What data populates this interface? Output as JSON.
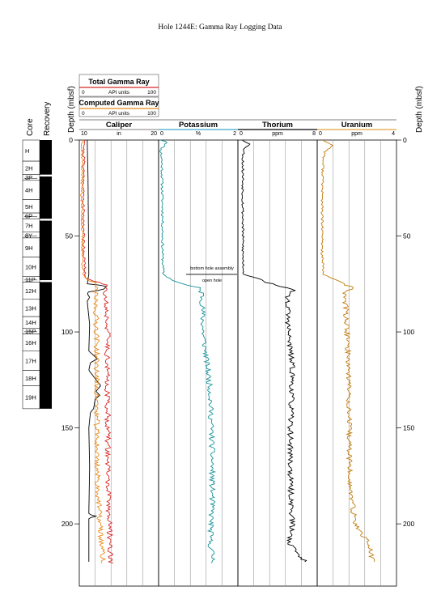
{
  "title": "Hole 1244E: Gamma Ray Logging Data",
  "header": {
    "core_label": "Core",
    "recovery_label": "Recovery",
    "depth_label": "Depth (mbsf)",
    "depth_label_right": "Depth (mbsf)"
  },
  "legend": {
    "total_gr": {
      "title": "Total Gamma Ray",
      "min": "0",
      "unit": "API units",
      "max": "100",
      "color": "#d62728"
    },
    "computed_gr": {
      "title": "Computed Gamma Ray",
      "min": "0",
      "unit": "API units",
      "max": "100",
      "color": "#e88a1a"
    }
  },
  "annotations": {
    "bha": "bottom hole assembly",
    "open_hole": "open hole",
    "bha_depth": 70
  },
  "cores": [
    {
      "label": "H",
      "top": 0,
      "bottom": 11
    },
    {
      "label": "2H",
      "top": 11,
      "bottom": 18
    },
    {
      "label": "3P",
      "top": 18,
      "bottom": 21
    },
    {
      "label": "4H",
      "top": 21,
      "bottom": 31
    },
    {
      "label": "5H",
      "top": 31,
      "bottom": 38
    },
    {
      "label": "6P",
      "top": 38,
      "bottom": 41
    },
    {
      "label": "7H",
      "top": 41,
      "bottom": 48
    },
    {
      "label": "8Y",
      "top": 48,
      "bottom": 51
    },
    {
      "label": "9H",
      "top": 51,
      "bottom": 61
    },
    {
      "label": "10H",
      "top": 61,
      "bottom": 71
    },
    {
      "label": "11P",
      "top": 71,
      "bottom": 74
    },
    {
      "label": "12H",
      "top": 74,
      "bottom": 83
    },
    {
      "label": "13H",
      "top": 83,
      "bottom": 92
    },
    {
      "label": "14H",
      "top": 92,
      "bottom": 98
    },
    {
      "label": "15P",
      "top": 98,
      "bottom": 101
    },
    {
      "label": "16H",
      "top": 101,
      "bottom": 110
    },
    {
      "label": "17H",
      "top": 110,
      "bottom": 120
    },
    {
      "label": "18H",
      "top": 120,
      "bottom": 128
    },
    {
      "label": "19H",
      "top": 128,
      "bottom": 140
    }
  ],
  "recovery": [
    [
      0,
      18
    ],
    [
      19,
      41
    ],
    [
      42,
      73
    ],
    [
      74,
      140
    ]
  ],
  "chart_data": {
    "type": "line",
    "y_axis": {
      "label": "Depth (mbsf)",
      "range": [
        0,
        224
      ],
      "ticks": [
        0,
        50,
        100,
        150,
        200
      ],
      "inverted": true
    },
    "tracks": [
      {
        "name": "Caliper",
        "unit": "in",
        "min": 10,
        "max": 20,
        "tick_min": "10",
        "tick_max": "20",
        "header_color": "#999999",
        "curves": [
          {
            "name": "caliper",
            "color": "#000000",
            "segments": [
              [
                0,
                11.0
              ],
              [
                20,
                11.1
              ],
              [
                70,
                11.2
              ],
              [
                75,
                11.0
              ],
              [
                76,
                13.5
              ],
              [
                78,
                13.0
              ],
              [
                79,
                11.2
              ],
              [
                80,
                11.0
              ],
              [
                82,
                11.3
              ],
              [
                84,
                11.0
              ],
              [
                88,
                11.1
              ],
              [
                96,
                11.3
              ],
              [
                110,
                11.2
              ],
              [
                114,
                12.3
              ],
              [
                116,
                11.4
              ],
              [
                120,
                11.2
              ],
              [
                128,
                12.7
              ],
              [
                131,
                12.1
              ],
              [
                133,
                12.6
              ],
              [
                135,
                12.0
              ],
              [
                140,
                11.8
              ],
              [
                142,
                11.4
              ],
              [
                150,
                11.2
              ],
              [
                170,
                11.3
              ],
              [
                195,
                11.2
              ],
              [
                196,
                12.1
              ],
              [
                197,
                11.2
              ],
              [
                220,
                11.2
              ]
            ]
          },
          {
            "name": "Total Gamma Ray",
            "color": "#d62728",
            "scale_min": 0,
            "scale_max": 100,
            "seed": 21,
            "segments": [
              [
                0,
                8
              ],
              [
                5,
                5
              ],
              [
                10,
                6
              ],
              [
                30,
                5
              ],
              [
                60,
                6
              ],
              [
                71,
                7
              ],
              [
                73,
                13
              ],
              [
                75,
                32
              ],
              [
                76,
                35
              ],
              [
                80,
                33
              ],
              [
                100,
                36
              ],
              [
                120,
                35
              ],
              [
                150,
                36
              ],
              [
                180,
                36
              ],
              [
                200,
                38
              ],
              [
                221,
                40
              ]
            ]
          },
          {
            "name": "Computed Gamma Ray",
            "color": "#e88a1a",
            "scale_min": 0,
            "scale_max": 100,
            "seed": 37,
            "segments": [
              [
                0,
                5
              ],
              [
                5,
                3
              ],
              [
                10,
                4
              ],
              [
                30,
                3
              ],
              [
                60,
                4
              ],
              [
                71,
                5
              ],
              [
                73,
                10
              ],
              [
                75,
                24
              ],
              [
                76,
                20
              ],
              [
                80,
                20
              ],
              [
                100,
                22
              ],
              [
                120,
                22
              ],
              [
                150,
                22
              ],
              [
                180,
                23
              ],
              [
                200,
                26
              ],
              [
                221,
                30
              ]
            ]
          }
        ]
      },
      {
        "name": "Potassium",
        "unit": "%",
        "min": 0,
        "max": 2,
        "tick_min": "0",
        "tick_max": "2",
        "header_color": "#3fa7c9",
        "curves": [
          {
            "name": "Potassium",
            "color": "#17939a",
            "seed": 11,
            "segments": [
              [
                0,
                0.05
              ],
              [
                1,
                0.25
              ],
              [
                2,
                0.18
              ],
              [
                5,
                0.05
              ],
              [
                10,
                0.08
              ],
              [
                40,
                0.1
              ],
              [
                60,
                0.1
              ],
              [
                70,
                0.12
              ],
              [
                73,
                0.35
              ],
              [
                75,
                0.6
              ],
              [
                77,
                1.0
              ],
              [
                80,
                1.1
              ],
              [
                100,
                1.12
              ],
              [
                130,
                1.3
              ],
              [
                160,
                1.35
              ],
              [
                190,
                1.35
              ],
              [
                210,
                1.3
              ],
              [
                221,
                1.4
              ]
            ]
          }
        ]
      },
      {
        "name": "Thorium",
        "unit": "ppm",
        "min": 0,
        "max": 8,
        "tick_min": "0",
        "tick_max": "8",
        "header_color": "#000000",
        "curves": [
          {
            "name": "Thorium",
            "color": "#000000",
            "seed": 53,
            "segments": [
              [
                0,
                0.5
              ],
              [
                2,
                1.2
              ],
              [
                5,
                0.6
              ],
              [
                10,
                0.5
              ],
              [
                30,
                0.5
              ],
              [
                60,
                0.5
              ],
              [
                70,
                0.6
              ],
              [
                72,
                2.0
              ],
              [
                76,
                3.8
              ],
              [
                78,
                6.0
              ],
              [
                80,
                5.0
              ],
              [
                100,
                5.1
              ],
              [
                120,
                5.5
              ],
              [
                150,
                5.3
              ],
              [
                180,
                5.3
              ],
              [
                200,
                5.5
              ],
              [
                210,
                5.2
              ],
              [
                220,
                6.8
              ]
            ]
          }
        ]
      },
      {
        "name": "Uranium",
        "unit": "ppm",
        "min": 0,
        "max": 4,
        "tick_min": "0",
        "tick_max": "4",
        "header_color": "#e0a43c",
        "curves": [
          {
            "name": "Uranium",
            "color": "#c27c0e",
            "seed": 77,
            "segments": [
              [
                0,
                0.3
              ],
              [
                3,
                0.8
              ],
              [
                6,
                0.4
              ],
              [
                10,
                0.3
              ],
              [
                30,
                0.25
              ],
              [
                60,
                0.25
              ],
              [
                70,
                0.3
              ],
              [
                72,
                0.8
              ],
              [
                75,
                1.3
              ],
              [
                77,
                1.8
              ],
              [
                79,
                1.4
              ],
              [
                100,
                1.5
              ],
              [
                120,
                1.6
              ],
              [
                150,
                1.6
              ],
              [
                180,
                1.65
              ],
              [
                200,
                1.9
              ],
              [
                210,
                2.6
              ],
              [
                220,
                2.8
              ]
            ]
          }
        ]
      }
    ]
  }
}
